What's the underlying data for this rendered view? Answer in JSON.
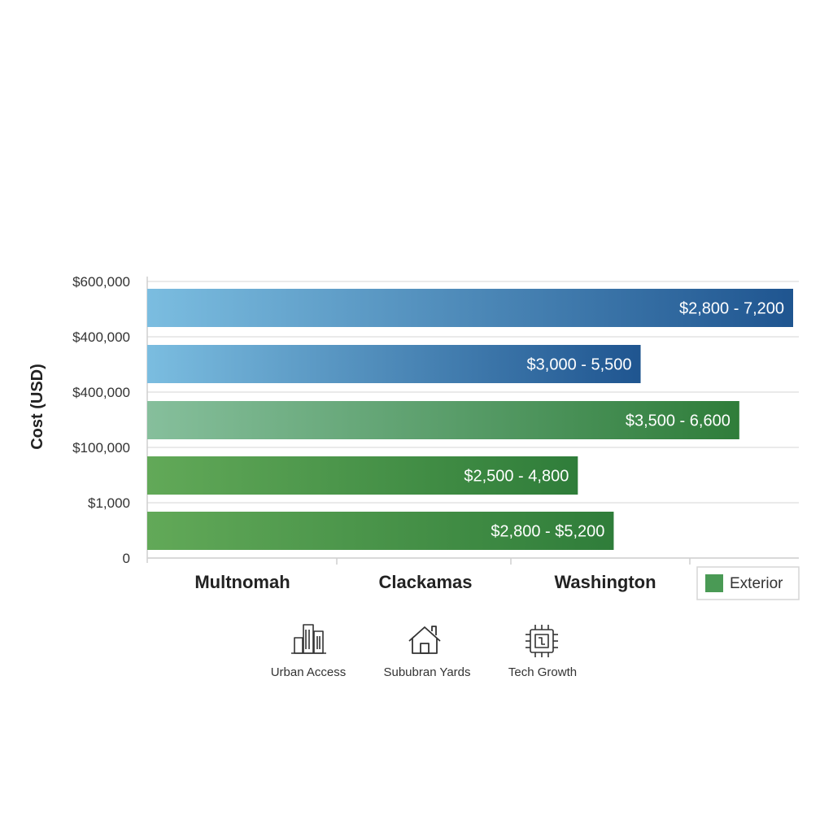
{
  "chart_data": {
    "type": "bar",
    "orientation": "horizontal",
    "ylabel": "Cost (USD)",
    "y_tick_labels": [
      "$600,000",
      "$400,000",
      "$400,000",
      "$100,000",
      "$1,000",
      "0"
    ],
    "x_tick_labels": [
      "Multnomah",
      "Clackamas",
      "Washington"
    ],
    "bars": [
      {
        "label": "$2,800 - 7,200",
        "min": 2800,
        "max": 7200,
        "color_start": "#7bbde0",
        "color_end": "#1f5590"
      },
      {
        "label": "$3,000 - 5,500",
        "min": 3000,
        "max": 5500,
        "color_start": "#7bbde0",
        "color_end": "#1f5590"
      },
      {
        "label": "$3,500 - 6,600",
        "min": 3500,
        "max": 6600,
        "color_start": "#86bf9c",
        "color_end": "#2f7d3a"
      },
      {
        "label": "$2,500 - 4,800",
        "min": 2500,
        "max": 4800,
        "color_start": "#62a958",
        "color_end": "#2f7d3a"
      },
      {
        "label": "$2,800 - $5,200",
        "min": 2800,
        "max": 5200,
        "color_start": "#62a958",
        "color_end": "#2f7d3a"
      }
    ],
    "legend": [
      {
        "label": "Exterior",
        "color": "#4a9a55"
      }
    ],
    "legend_position": "bottom-right",
    "grid": true
  },
  "icons": [
    {
      "icon": "city-buildings-icon",
      "label": "Urban Access"
    },
    {
      "icon": "house-icon",
      "label": "Sububran Yards"
    },
    {
      "icon": "chip-icon",
      "label": "Tech Growth"
    }
  ]
}
